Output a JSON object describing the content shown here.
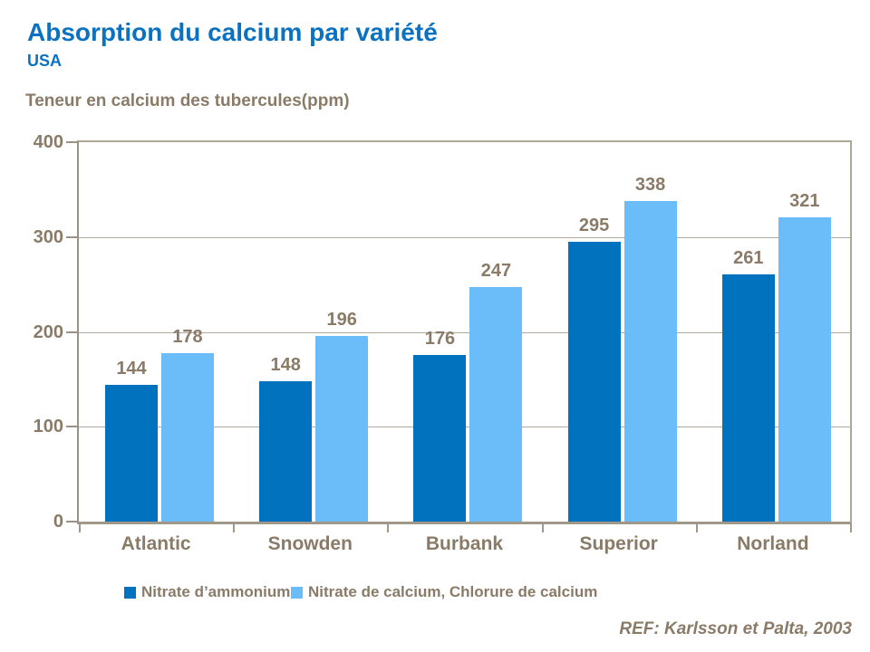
{
  "header": {
    "title": "Absorption du calcium par variété",
    "subtitle": "USA"
  },
  "chart_data": {
    "type": "bar",
    "title": "Teneur en calcium des tubercules(ppm)",
    "categories": [
      "Atlantic",
      "Snowden",
      "Burbank",
      "Superior",
      "Norland"
    ],
    "series": [
      {
        "name": "Nitrate d’ammonium",
        "color": "#0072BE",
        "values": [
          144,
          148,
          176,
          295,
          261
        ]
      },
      {
        "name": "Nitrate de calcium, Chlorure de calcium",
        "color": "#6ABDF9",
        "values": [
          178,
          196,
          247,
          338,
          321
        ]
      }
    ],
    "ylim": [
      0,
      400
    ],
    "yticks": [
      0,
      100,
      200,
      300,
      400
    ],
    "grid": true,
    "legend_position": "bottom",
    "data_labels": true,
    "footnote": "REF: Karlsson et Palta, 2003"
  },
  "colors": {
    "title_blue": "#0B72C2",
    "text_brown": "#8A7B68",
    "gridline": "#B2A99D",
    "axis": "#9C9183",
    "series_dark": "#0072BE",
    "series_light": "#6ABDF9"
  }
}
